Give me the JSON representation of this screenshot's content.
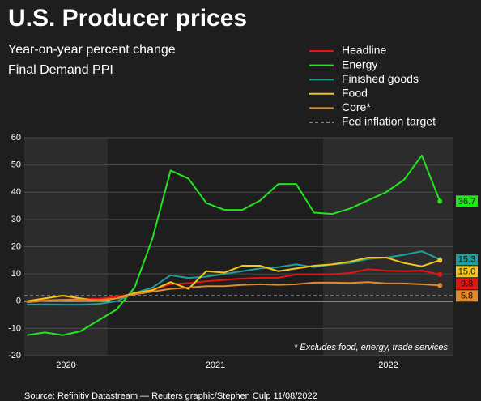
{
  "chart_data": {
    "type": "line",
    "title": "U.S. Producer prices",
    "subtitle": [
      "Year-on-year percent change",
      "Final Demand PPI"
    ],
    "footnote": "* Excludes food, energy, trade services",
    "source": "Source: Refinitiv Datastream — Reuters graphic/Stephen Culp 11/08/2022",
    "x": [
      2020.625,
      2020.708,
      2020.792,
      2020.875,
      2020.958,
      2021.042,
      2021.125,
      2021.208,
      2021.292,
      2021.375,
      2021.458,
      2021.542,
      2021.625,
      2021.708,
      2021.792,
      2021.875,
      2021.958,
      2022.042,
      2022.125,
      2022.208,
      2022.292,
      2022.375,
      2022.458,
      2022.542
    ],
    "xlim": [
      2020.613,
      2022.605
    ],
    "x_bands": [
      {
        "label": "2020",
        "range": [
          2020,
          2021
        ],
        "shaded": true
      },
      {
        "label": "2021",
        "range": [
          2021,
          2022
        ],
        "shaded": false
      },
      {
        "label": "2022",
        "range": [
          2022,
          2023
        ],
        "shaded": true
      }
    ],
    "ylim": [
      -20,
      60
    ],
    "yticks": [
      -20,
      -10,
      0,
      10,
      20,
      30,
      40,
      50,
      60
    ],
    "grid": true,
    "series": [
      {
        "name": "Headline",
        "color": "#e8140f",
        "values": [
          -0.2,
          0.4,
          0.5,
          0.8,
          0.8,
          1.7,
          2.8,
          4.2,
          6.2,
          6.6,
          7.3,
          7.8,
          8.3,
          8.6,
          8.6,
          9.8,
          9.8,
          9.9,
          10.3,
          11.7,
          11.2,
          11.0,
          11.2,
          9.8
        ],
        "value_labels": [
          null,
          null,
          null,
          null,
          null,
          null,
          null,
          null,
          null,
          null,
          null,
          null,
          null,
          null,
          null,
          null,
          null,
          null,
          null,
          null,
          null,
          null,
          null,
          "9.8"
        ]
      },
      {
        "name": "Energy",
        "color": "#22e51c",
        "values": [
          -12.5,
          -11.5,
          -12.5,
          -11,
          -7,
          -3,
          5,
          23,
          48,
          45,
          36,
          33.5,
          33.5,
          37,
          43,
          43,
          32.5,
          32,
          34,
          37,
          40,
          44.5,
          53.5,
          36.7
        ],
        "value_labels": [
          null,
          null,
          null,
          null,
          null,
          null,
          null,
          null,
          null,
          null,
          null,
          null,
          null,
          null,
          null,
          null,
          null,
          null,
          null,
          null,
          null,
          null,
          null,
          "36.7"
        ]
      },
      {
        "name": "Finished goods",
        "color": "#1f9e9b",
        "values": [
          -1.3,
          -1.2,
          -1.3,
          -1.3,
          -1,
          0,
          3,
          5,
          9.5,
          8.5,
          9,
          10,
          11,
          12,
          12.5,
          13.5,
          12.5,
          13.5,
          14,
          15.5,
          16,
          17,
          18.3,
          15.3
        ],
        "value_labels": [
          null,
          null,
          null,
          null,
          null,
          null,
          null,
          null,
          null,
          null,
          null,
          null,
          null,
          null,
          null,
          null,
          null,
          null,
          null,
          null,
          null,
          null,
          null,
          "15.3"
        ]
      },
      {
        "name": "Food",
        "color": "#f5c518",
        "values": [
          0,
          1,
          2,
          1,
          0,
          1,
          3,
          4,
          7,
          4.5,
          11,
          10.5,
          13,
          13,
          11,
          12,
          13,
          13.5,
          14.5,
          16,
          16,
          14,
          12.8,
          15.0
        ],
        "value_labels": [
          null,
          null,
          null,
          null,
          null,
          null,
          null,
          null,
          null,
          null,
          null,
          null,
          null,
          null,
          null,
          null,
          null,
          null,
          null,
          null,
          null,
          null,
          null,
          "15.0"
        ]
      },
      {
        "name": "Core*",
        "color": "#e08a2a",
        "values": [
          -0.4,
          0.2,
          0.5,
          0.6,
          0.4,
          1,
          2.5,
          3.5,
          4.5,
          5,
          5.5,
          5.5,
          6,
          6.2,
          6,
          6.2,
          6.8,
          6.8,
          6.7,
          7,
          6.5,
          6.5,
          6.2,
          5.8
        ],
        "value_labels": [
          null,
          null,
          null,
          null,
          null,
          null,
          null,
          null,
          null,
          null,
          null,
          null,
          null,
          null,
          null,
          null,
          null,
          null,
          null,
          null,
          null,
          null,
          null,
          "5.8"
        ]
      }
    ],
    "reference_line": {
      "name": "Fed inflation target",
      "value": 2,
      "color": "#9a9a9a"
    }
  }
}
